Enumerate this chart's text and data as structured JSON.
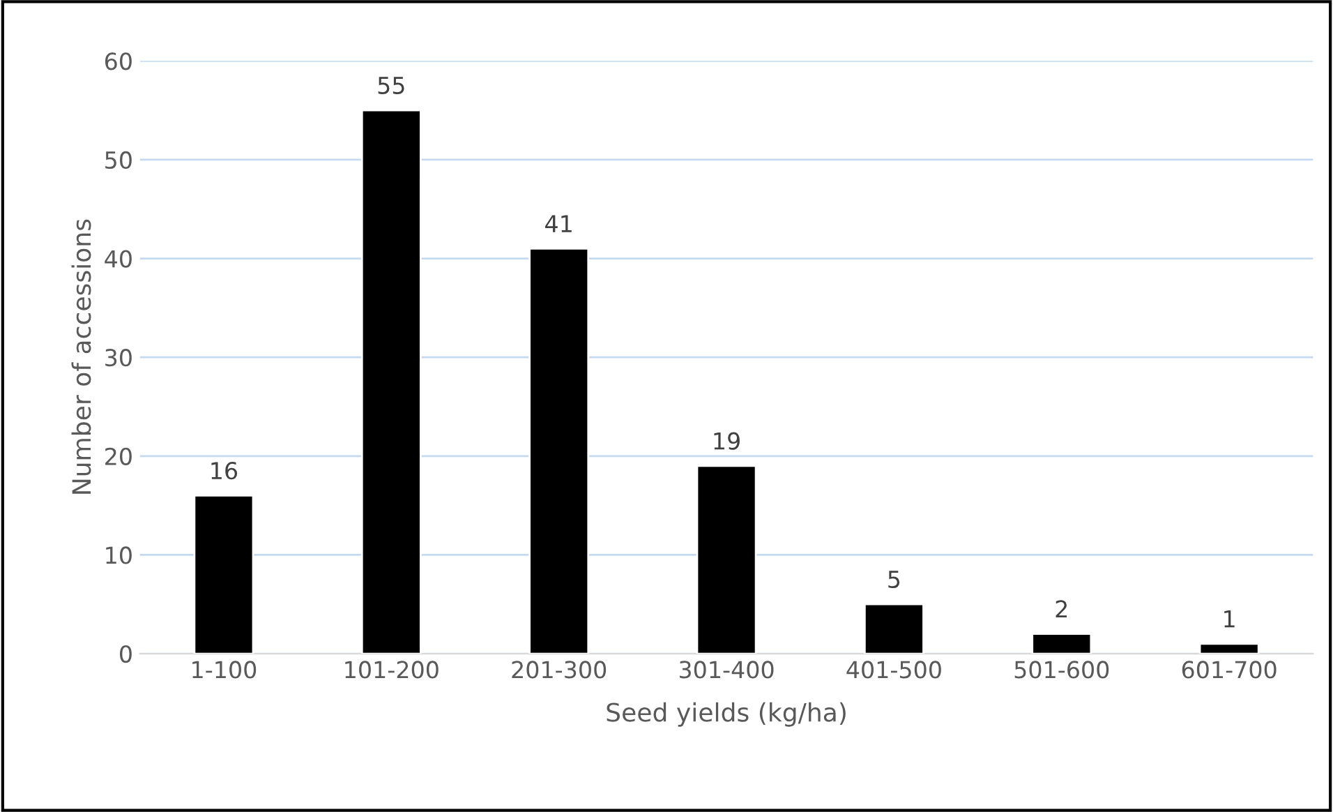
{
  "chart_data": {
    "type": "bar",
    "xlabel": "Seed yields (kg/ha)",
    "ylabel": "Number of accessions",
    "categories": [
      "1-100",
      "101-200",
      "201-300",
      "301-400",
      "401-500",
      "501-600",
      "601-700"
    ],
    "values": [
      16,
      55,
      41,
      19,
      5,
      2,
      1
    ],
    "color": "#000000",
    "ylim": [
      0,
      60
    ],
    "yticks": [
      0,
      10,
      20,
      30,
      40,
      50,
      60
    ],
    "grid": "y",
    "data_labels": true
  }
}
